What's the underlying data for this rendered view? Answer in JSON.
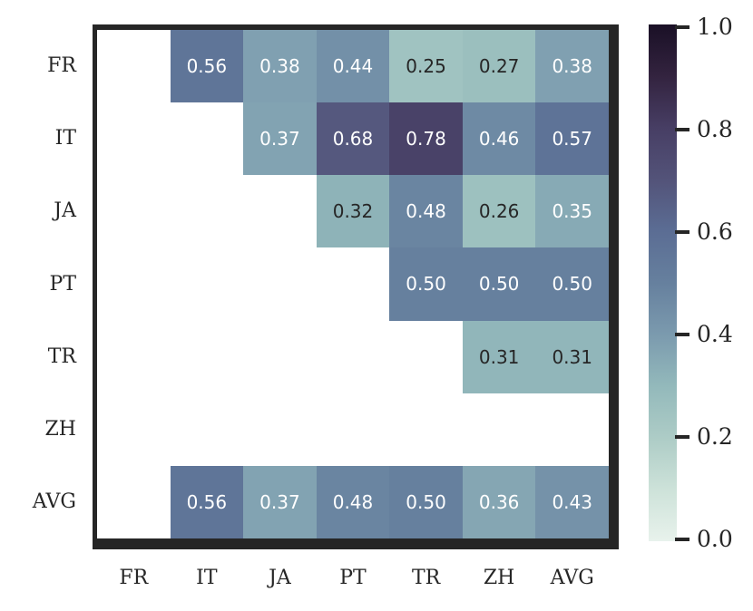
{
  "chart_data": {
    "type": "heatmap",
    "title": "",
    "xlabel": "",
    "ylabel": "",
    "rows": [
      "FR",
      "IT",
      "JA",
      "PT",
      "TR",
      "ZH",
      "AVG"
    ],
    "cols": [
      "FR",
      "IT",
      "JA",
      "PT",
      "TR",
      "ZH",
      "AVG"
    ],
    "matrix": [
      [
        null,
        0.56,
        0.38,
        0.44,
        0.25,
        0.27,
        0.38
      ],
      [
        null,
        null,
        0.37,
        0.68,
        0.78,
        0.46,
        0.57
      ],
      [
        null,
        null,
        null,
        0.32,
        0.48,
        0.26,
        0.35
      ],
      [
        null,
        null,
        null,
        null,
        0.5,
        0.5,
        0.5
      ],
      [
        null,
        null,
        null,
        null,
        null,
        0.31,
        0.31
      ],
      [
        null,
        null,
        null,
        null,
        null,
        null,
        null
      ],
      [
        null,
        0.56,
        0.37,
        0.48,
        0.5,
        0.36,
        0.43
      ]
    ],
    "value_decimals": 2,
    "masked_cell_color": "#ffffff",
    "frame_color": "#262626",
    "background_color": "#ffffff",
    "annotation_text_colors": {
      "on_dark": "#ffffff",
      "on_light": "#262626"
    },
    "colorbar": {
      "position": "right",
      "min": 0.0,
      "max": 1.0,
      "tick_labels": [
        "1.0",
        "0.8",
        "0.6",
        "0.4",
        "0.2",
        "0.0"
      ]
    },
    "colormap_stops": [
      {
        "v": 0.0,
        "color": "#e8f2ec"
      },
      {
        "v": 0.1,
        "color": "#cde2d9"
      },
      {
        "v": 0.2,
        "color": "#adccc6"
      },
      {
        "v": 0.3,
        "color": "#93b9bb"
      },
      {
        "v": 0.4,
        "color": "#7b9aae"
      },
      {
        "v": 0.5,
        "color": "#66809e"
      },
      {
        "v": 0.6,
        "color": "#5b6d94"
      },
      {
        "v": 0.7,
        "color": "#535379"
      },
      {
        "v": 0.8,
        "color": "#473e64"
      },
      {
        "v": 0.9,
        "color": "#33233f"
      },
      {
        "v": 1.0,
        "color": "#1a1026"
      }
    ]
  }
}
